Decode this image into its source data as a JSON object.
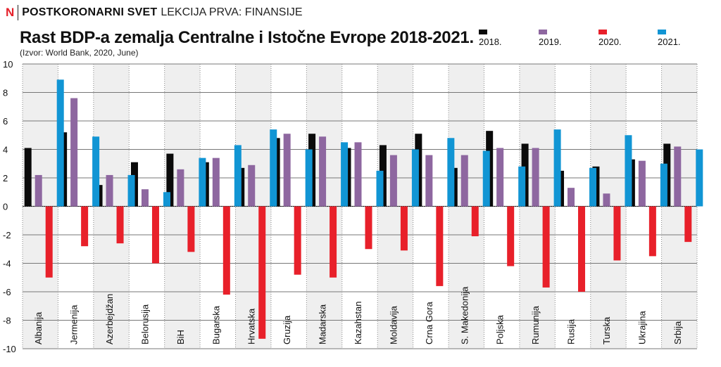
{
  "header": {
    "logo": "N",
    "section": "POSTKORONARNI SVET",
    "subsection": "LEKCIJA PRVA: FINANSIJE"
  },
  "colors": {
    "logo": "#e5202a",
    "shade": "#efefef",
    "grid": "#777777"
  },
  "chart_data": {
    "type": "bar",
    "title": "Rast BDP-a zemalja Centralne i Istočne Evrope 2018-2021.",
    "subtitle": "(Izvor: World Bank, 2020, June)",
    "xlabel": "",
    "ylabel": "",
    "ylim": [
      -10,
      10
    ],
    "yticks": [
      10,
      8,
      6,
      4,
      2,
      0,
      -2,
      -4,
      -6,
      -8,
      -10
    ],
    "grid": true,
    "legend_position": "top-right",
    "categories": [
      "Albanija",
      "Jermenija",
      "Azerbejdžan",
      "Belorusija",
      "BiH",
      "Bugarska",
      "Hrvatska",
      "Gruzija",
      "Madarska",
      "Kazahstan",
      "Moldavija",
      "Crna Gora",
      "S. Makedonija",
      "Poljska",
      "Rumunija",
      "Rusija",
      "Turska",
      "Ukrajina",
      "Srbija"
    ],
    "series": [
      {
        "name": "2018.",
        "color": "#0a0a0a",
        "values": [
          4.1,
          5.2,
          1.5,
          3.1,
          3.7,
          3.1,
          2.7,
          4.8,
          5.1,
          4.1,
          4.3,
          5.1,
          2.7,
          5.3,
          4.4,
          2.5,
          2.8,
          3.3,
          4.4
        ]
      },
      {
        "name": "2019.",
        "color": "#8e67a0",
        "values": [
          2.2,
          7.6,
          2.2,
          1.2,
          2.6,
          3.4,
          2.9,
          5.1,
          4.9,
          4.5,
          3.6,
          3.6,
          3.6,
          4.1,
          4.1,
          1.3,
          0.9,
          3.2,
          4.2
        ]
      },
      {
        "name": "2020.",
        "color": "#e8202a",
        "values": [
          -5.0,
          -2.8,
          -2.6,
          -4.0,
          -3.2,
          -6.2,
          -9.3,
          -4.8,
          -5.0,
          -3.0,
          -3.1,
          -5.6,
          -2.1,
          -4.2,
          -5.7,
          -6.0,
          -3.8,
          -3.5,
          -2.5
        ]
      },
      {
        "name": "2021.",
        "color": "#1195d4",
        "values": [
          8.9,
          4.9,
          2.2,
          1.0,
          3.4,
          4.3,
          5.4,
          4.0,
          4.5,
          2.5,
          4.0,
          4.8,
          3.9,
          2.8,
          5.4,
          2.7,
          5.0,
          3.0,
          4.0
        ]
      }
    ]
  }
}
